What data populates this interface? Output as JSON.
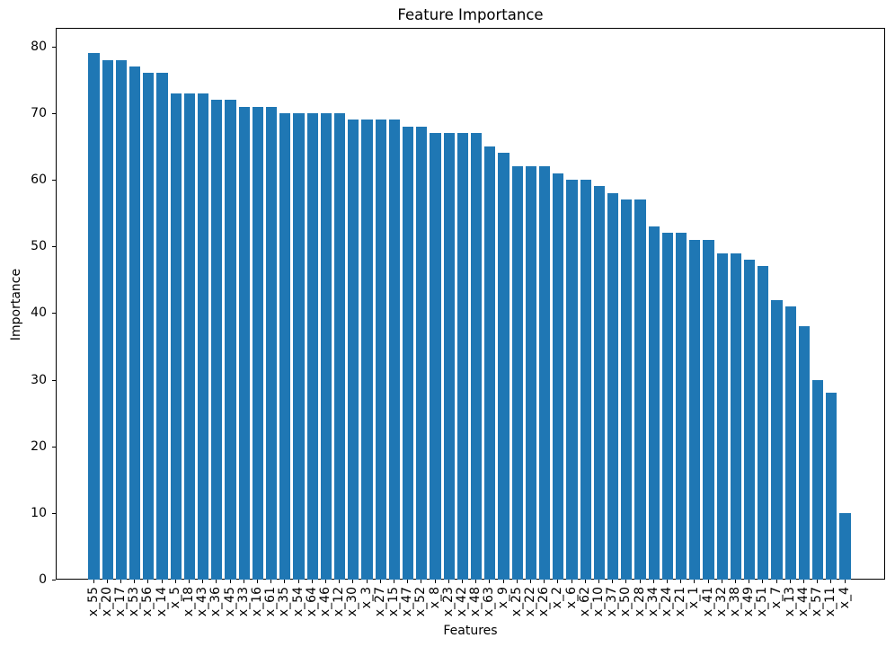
{
  "chart_data": {
    "type": "bar",
    "title": "Feature Importance",
    "xlabel": "Features",
    "ylabel": "Importance",
    "categories": [
      "x_55",
      "x_20",
      "x_17",
      "x_53",
      "x_56",
      "x_14",
      "x_5",
      "x_18",
      "x_43",
      "x_36",
      "x_45",
      "x_33",
      "x_16",
      "x_61",
      "x_35",
      "x_54",
      "x_64",
      "x_46",
      "x_12",
      "x_30",
      "x_3",
      "x_27",
      "x_15",
      "x_47",
      "x_52",
      "x_8",
      "x_23",
      "x_42",
      "x_48",
      "x_63",
      "x_9",
      "x_25",
      "x_22",
      "x_26",
      "x_2",
      "x_6",
      "x_62",
      "x_10",
      "x_37",
      "x_50",
      "x_28",
      "x_34",
      "x_24",
      "x_21",
      "x_1",
      "x_41",
      "x_32",
      "x_38",
      "x_49",
      "x_51",
      "x_7",
      "x_13",
      "x_44",
      "x_57",
      "x_11",
      "x_4"
    ],
    "values": [
      79,
      78,
      78,
      77,
      76,
      76,
      73,
      73,
      73,
      72,
      72,
      71,
      71,
      71,
      70,
      70,
      70,
      70,
      70,
      69,
      69,
      69,
      69,
      68,
      68,
      67,
      67,
      67,
      67,
      65,
      64,
      62,
      62,
      62,
      61,
      60,
      60,
      59,
      58,
      57,
      57,
      53,
      52,
      52,
      51,
      51,
      49,
      49,
      48,
      47,
      42,
      41,
      38,
      30,
      28,
      10
    ],
    "yticks": [
      0,
      10,
      20,
      30,
      40,
      50,
      60,
      70,
      80
    ],
    "ylim": [
      0,
      82.8
    ],
    "grid": false,
    "legend": null,
    "bar_color": "#1f77b4"
  }
}
